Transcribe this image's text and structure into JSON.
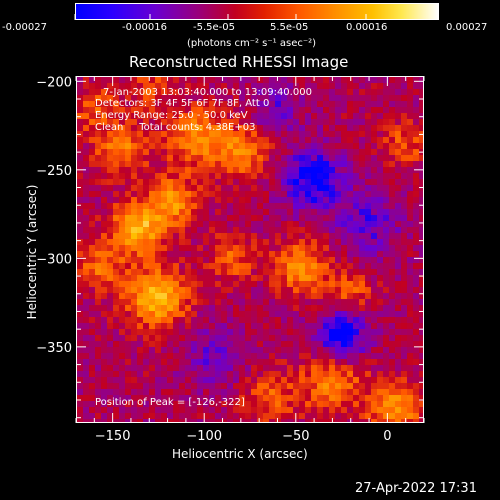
{
  "colorbar": {
    "tick_labels": [
      "-0.00027",
      "-0.00016",
      "-5.5e-05",
      "5.5e-05",
      "0.00016",
      "0.00027"
    ],
    "unit_label": "(photons cm⁻² s⁻¹ asec⁻²)"
  },
  "plot": {
    "title": "Reconstructed RHESSI Image",
    "info_lines": [
      "7-Jan-2003 13:03:40.000 to 13:09:40.000",
      "Detectors: 3F 4F 5F 6F 7F 8F, Att 0",
      "Energy Range: 25.0 - 50.0 keV",
      "Clean     Total counts: 4.38E+03"
    ],
    "peak_label": "Position of Peak = [-126,-322]"
  },
  "footer": {
    "timestamp": "27-Apr-2022 17:31"
  },
  "chart_data": {
    "type": "heatmap",
    "title": "Reconstructed RHESSI Image",
    "xlabel": "Heliocentric X (arcsec)",
    "ylabel": "Heliocentric Y (arcsec)",
    "xlim": [
      -170,
      20
    ],
    "ylim": [
      -393,
      -197
    ],
    "x_ticks": [
      -150,
      -100,
      -50,
      0
    ],
    "y_ticks": [
      -200,
      -250,
      -300,
      -350
    ],
    "x_tick_labels": [
      "−150",
      "−100",
      "−50",
      "0"
    ],
    "y_tick_labels": [
      "−200",
      "−250",
      "−300",
      "−350"
    ],
    "zlim": [
      -0.00027,
      0.00027
    ],
    "colormap": [
      "#0000ff",
      "#6a00d0",
      "#9a007a",
      "#c20020",
      "#ff5a00",
      "#ff9000",
      "#ffc000",
      "#ffffff"
    ],
    "peak": {
      "x": -126,
      "y": -322
    },
    "sources": [
      {
        "x": -137,
        "y": -283,
        "amp": 0.00026,
        "sigma": 10
      },
      {
        "x": -126,
        "y": -322,
        "amp": 0.00027,
        "sigma": 11
      },
      {
        "x": -117,
        "y": -268,
        "amp": 0.0002,
        "sigma": 9
      },
      {
        "x": -157,
        "y": -305,
        "amp": 0.00014,
        "sigma": 9
      },
      {
        "x": -145,
        "y": -238,
        "amp": 0.00016,
        "sigma": 10
      },
      {
        "x": -103,
        "y": -232,
        "amp": 0.00018,
        "sigma": 12
      },
      {
        "x": -78,
        "y": -240,
        "amp": 0.00016,
        "sigma": 10
      },
      {
        "x": -47,
        "y": -305,
        "amp": 0.0002,
        "sigma": 10
      },
      {
        "x": -20,
        "y": -318,
        "amp": 0.00012,
        "sigma": 8
      },
      {
        "x": -30,
        "y": -370,
        "amp": 0.00017,
        "sigma": 12
      },
      {
        "x": 5,
        "y": -385,
        "amp": 0.0002,
        "sigma": 10
      },
      {
        "x": -65,
        "y": -380,
        "amp": 0.00012,
        "sigma": 10
      },
      {
        "x": -160,
        "y": -215,
        "amp": 0.00012,
        "sigma": 9
      },
      {
        "x": -130,
        "y": -205,
        "amp": 0.0001,
        "sigma": 8
      },
      {
        "x": -85,
        "y": -300,
        "amp": 0.00012,
        "sigma": 9
      },
      {
        "x": 10,
        "y": -235,
        "amp": 0.00011,
        "sigma": 9
      },
      {
        "x": -40,
        "y": -255,
        "amp": -0.0002,
        "sigma": 12
      },
      {
        "x": -25,
        "y": -345,
        "amp": -0.00022,
        "sigma": 10
      },
      {
        "x": -10,
        "y": -280,
        "amp": -0.00012,
        "sigma": 12
      },
      {
        "x": -95,
        "y": -355,
        "amp": -0.0001,
        "sigma": 12
      },
      {
        "x": -60,
        "y": -215,
        "amp": -0.0001,
        "sigma": 10
      }
    ],
    "background": -8e-05
  }
}
